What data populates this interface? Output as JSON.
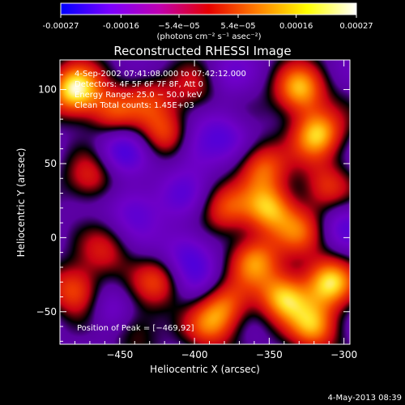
{
  "chart_data": {
    "type": "heatmap",
    "title": "Reconstructed RHESSI Image",
    "xlabel": "Heliocentric X (arcsec)",
    "ylabel": "Heliocentric Y (arcsec)",
    "x_range": [
      -490,
      -296
    ],
    "y_range": [
      -72,
      120
    ],
    "x_ticks": [
      -450,
      -400,
      -350,
      -300
    ],
    "x_tick_labels": [
      "−450",
      "−400",
      "−350",
      "−300"
    ],
    "y_ticks": [
      -50,
      0,
      50,
      100
    ],
    "y_tick_labels": [
      "−50",
      "0",
      "50",
      "100"
    ],
    "colorbar": {
      "range": [
        -0.00027,
        0.00027
      ],
      "tick_values": [
        -0.00027,
        -0.00016,
        -5.4e-05,
        5.4e-05,
        0.00016,
        0.00027
      ],
      "tick_labels": [
        "-0.00027",
        "-0.00016",
        "−5.4e−05",
        "5.4e−05",
        "0.00016",
        "0.00027"
      ],
      "units": "(photons cm⁻² s⁻¹ asec⁻²)",
      "colors": [
        "#0000ff",
        "#7b00ff",
        "#bf00b0",
        "#e60000",
        "#ff8000",
        "#ffff00",
        "#ffffff"
      ]
    },
    "annotations": [
      "4-Sep-2002 07:41:08.000 to 07:42:12.000",
      "Detectors: 4F 5F 6F 7F 8F, Att 0",
      "Energy Range: 25.0 − 50.0 keV",
      "Clean    Total counts: 1.45E+03"
    ],
    "peak_label": "Position of Peak = [−469,92]",
    "peak_position": [
      -469,
      92
    ],
    "blobs": [
      {
        "x": -480,
        "y": 100,
        "v": 1.0
      },
      {
        "x": -455,
        "y": 85,
        "v": 0.55
      },
      {
        "x": -470,
        "y": 40,
        "v": 0.45
      },
      {
        "x": -430,
        "y": 95,
        "v": 0.35
      },
      {
        "x": -420,
        "y": 70,
        "v": 0.55
      },
      {
        "x": -400,
        "y": 100,
        "v": 0.35
      },
      {
        "x": -330,
        "y": 100,
        "v": 0.8
      },
      {
        "x": -318,
        "y": 70,
        "v": 0.85
      },
      {
        "x": -355,
        "y": 48,
        "v": 0.6
      },
      {
        "x": -312,
        "y": 35,
        "v": 0.45
      },
      {
        "x": -380,
        "y": 20,
        "v": 0.5
      },
      {
        "x": -350,
        "y": 20,
        "v": 0.75
      },
      {
        "x": -330,
        "y": 5,
        "v": 0.5
      },
      {
        "x": -360,
        "y": -15,
        "v": 0.7
      },
      {
        "x": -340,
        "y": -40,
        "v": 0.85
      },
      {
        "x": -310,
        "y": -30,
        "v": 0.85
      },
      {
        "x": -320,
        "y": -60,
        "v": 0.7
      },
      {
        "x": -380,
        "y": -45,
        "v": 0.55
      },
      {
        "x": -425,
        "y": -30,
        "v": 0.45
      },
      {
        "x": -480,
        "y": -35,
        "v": 0.6
      },
      {
        "x": -460,
        "y": -10,
        "v": 0.35
      },
      {
        "x": -440,
        "y": -60,
        "v": 0.35
      },
      {
        "x": -390,
        "y": -60,
        "v": 0.5
      },
      {
        "x": -400,
        "y": 60,
        "v": -0.35
      },
      {
        "x": -450,
        "y": 60,
        "v": -0.45
      },
      {
        "x": -440,
        "y": 20,
        "v": -0.35
      },
      {
        "x": -410,
        "y": 30,
        "v": -0.25
      },
      {
        "x": -380,
        "y": 70,
        "v": -0.3
      },
      {
        "x": -455,
        "y": -50,
        "v": -0.3
      },
      {
        "x": -405,
        "y": -10,
        "v": -0.4
      },
      {
        "x": -395,
        "y": -30,
        "v": -0.2
      },
      {
        "x": -300,
        "y": 10,
        "v": -0.3
      },
      {
        "x": -380,
        "y": 110,
        "v": -0.2
      }
    ]
  },
  "footer": {
    "timestamp": "4-May-2013 08:39"
  }
}
